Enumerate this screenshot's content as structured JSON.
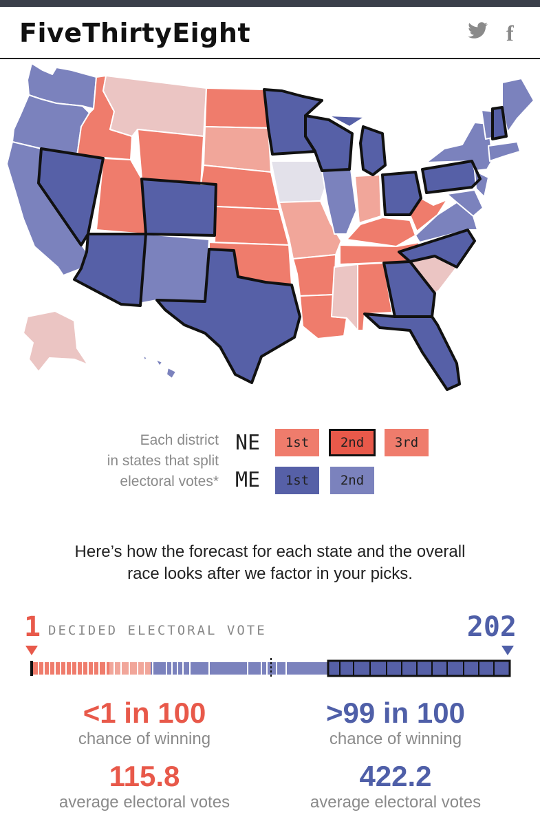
{
  "header": {
    "logo": "FiveThirtyEight",
    "twitter_icon": "twitter-icon",
    "facebook_icon": "facebook-icon"
  },
  "colors": {
    "strong_red": "#ef7c6c",
    "light_red": "#f1a69a",
    "pale_red": "#ebc5c3",
    "tossup": "#e3e1ea",
    "strong_blue": "#5660a7",
    "light_blue": "#7b82bd",
    "red_accent": "#e8594a",
    "blue_accent": "#4f5fa8"
  },
  "legend": {
    "description_lines": [
      "Each district",
      "in states that split",
      "electoral votes*"
    ],
    "ne": {
      "state": "NE",
      "districts": [
        "1st",
        "2nd",
        "3rd"
      ]
    },
    "me": {
      "state": "ME",
      "districts": [
        "1st",
        "2nd"
      ]
    }
  },
  "summary": {
    "lines": [
      "Here’s how the forecast for each state and the overall",
      "race looks after we factor in your picks."
    ]
  },
  "electoral_bar": {
    "left_count": "1",
    "label": "DECIDED ELECTORAL VOTE",
    "right_count": "202"
  },
  "candidates": {
    "left": {
      "chance": "<1 in 100",
      "chance_label": "chance of winning",
      "votes": "115.8",
      "votes_label": "average electoral votes"
    },
    "right": {
      "chance": ">99 in 100",
      "chance_label": "chance of winning",
      "votes": "422.2",
      "votes_label": "average electoral votes"
    }
  }
}
